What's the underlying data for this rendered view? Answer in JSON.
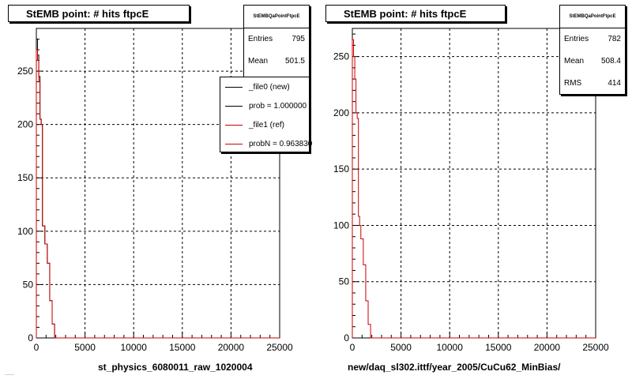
{
  "panels": [
    {
      "title": "StEMB point: # hits ftpcE",
      "stats": {
        "title": "StEMBQaPointFtpcE",
        "rows": [
          {
            "label": "Entries",
            "value": "795"
          },
          {
            "label": "Mean",
            "value": "501.5"
          }
        ]
      },
      "legend": [
        {
          "label": "_file0 (new)",
          "color": "#000000"
        },
        {
          "label": "prob = 1.000000",
          "color": "#000000"
        },
        {
          "label": "_file1 (ref)",
          "color": "#cc0000"
        },
        {
          "label": "probN = 0.963830",
          "color": "#cc0000"
        }
      ],
      "xlabel": "st_physics_6080011_raw_1020004"
    },
    {
      "title": "StEMB point: # hits ftpcE",
      "stats": {
        "title": "StEMBQaPointFtpcE",
        "rows": [
          {
            "label": "Entries",
            "value": "782"
          },
          {
            "label": "Mean",
            "value": "508.4"
          },
          {
            "label": "RMS",
            "value": "414"
          }
        ]
      },
      "legend": [],
      "xlabel": "new/daq_sl302.ittf/year_2005/CuCu62_MinBias/"
    }
  ],
  "footer": "......",
  "chart_data": [
    {
      "type": "histogram",
      "title": "StEMB point: # hits ftpcE",
      "xlabel": "st_physics_6080011_raw_1020004",
      "ylabel": "",
      "xlim": [
        0,
        25000
      ],
      "ylim": [
        0,
        290
      ],
      "x_ticks": [
        0,
        5000,
        10000,
        15000,
        20000,
        25000
      ],
      "y_ticks": [
        0,
        50,
        100,
        150,
        200,
        250
      ],
      "grid": true,
      "bin_edges": [
        0,
        125,
        250,
        375,
        500,
        625,
        750,
        875,
        1000,
        1125,
        1250,
        1375,
        1500,
        1625,
        1750,
        1875,
        2000
      ],
      "series": [
        {
          "name": "_file0 (new)",
          "color": "#000000",
          "values": [
            280,
            265,
            245,
            205,
            200,
            105,
            105,
            88,
            88,
            70,
            70,
            35,
            35,
            13,
            13,
            0
          ]
        },
        {
          "name": "_file1 (ref)",
          "color": "#cc0000",
          "values": [
            270,
            260,
            240,
            205,
            200,
            105,
            105,
            88,
            88,
            70,
            70,
            35,
            35,
            13,
            13,
            0
          ]
        }
      ]
    },
    {
      "type": "histogram",
      "title": "StEMB point: # hits ftpcE",
      "xlabel": "new/daq_sl302.ittf/year_2005/CuCu62_MinBias/",
      "ylabel": "",
      "xlim": [
        0,
        25000
      ],
      "ylim": [
        0,
        275
      ],
      "x_ticks": [
        0,
        5000,
        10000,
        15000,
        20000,
        25000
      ],
      "y_ticks": [
        0,
        50,
        100,
        150,
        200,
        250
      ],
      "grid": true,
      "bin_edges": [
        0,
        125,
        250,
        375,
        500,
        625,
        750,
        875,
        1000,
        1125,
        1250,
        1375,
        1500,
        1625,
        1750,
        1875,
        2000
      ],
      "series": [
        {
          "name": "",
          "color": "#cc0000",
          "values": [
            265,
            250,
            230,
            200,
            195,
            108,
            100,
            88,
            88,
            65,
            65,
            33,
            33,
            12,
            12,
            0
          ]
        }
      ]
    }
  ]
}
